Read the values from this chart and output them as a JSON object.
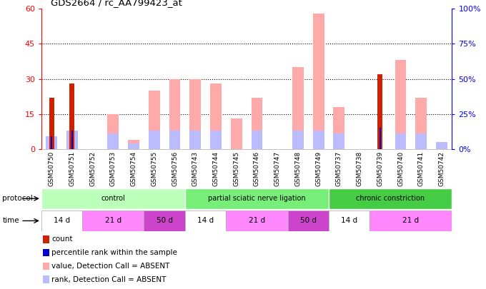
{
  "title": "GDS2664 / rc_AA799423_at",
  "samples": [
    "GSM50750",
    "GSM50751",
    "GSM50752",
    "GSM50753",
    "GSM50754",
    "GSM50755",
    "GSM50756",
    "GSM50743",
    "GSM50744",
    "GSM50745",
    "GSM50746",
    "GSM50747",
    "GSM50748",
    "GSM50749",
    "GSM50737",
    "GSM50738",
    "GSM50739",
    "GSM50740",
    "GSM50741",
    "GSM50742"
  ],
  "count_values": [
    22,
    28,
    0,
    0,
    0,
    0,
    0,
    0,
    0,
    0,
    0,
    0,
    0,
    0,
    0,
    0,
    32,
    0,
    0,
    0
  ],
  "percentile_values": [
    9,
    13,
    0,
    0,
    0,
    0,
    0,
    0,
    0,
    0,
    0,
    0,
    0,
    0,
    0,
    0,
    15,
    0,
    0,
    0
  ],
  "absent_value_values": [
    0,
    0,
    0,
    15,
    4,
    25,
    30,
    30,
    28,
    13,
    22,
    0,
    35,
    58,
    18,
    0,
    0,
    38,
    22,
    0
  ],
  "absent_rank_values": [
    9,
    13,
    0,
    11,
    4,
    13,
    13,
    13,
    13,
    0,
    13,
    0,
    13,
    13,
    11,
    0,
    0,
    11,
    11,
    5
  ],
  "ylim_left": [
    0,
    60
  ],
  "ylim_right": [
    0,
    100
  ],
  "yticks_left": [
    0,
    15,
    30,
    45,
    60
  ],
  "yticks_right": [
    0,
    25,
    50,
    75,
    100
  ],
  "ytick_labels_left": [
    "0",
    "15",
    "30",
    "45",
    "60"
  ],
  "ytick_labels_right": [
    "0%",
    "25%",
    "50%",
    "75%",
    "100%"
  ],
  "gridlines_at": [
    15,
    30,
    45
  ],
  "color_count": "#cc2200",
  "color_percentile": "#0000cc",
  "color_absent_value": "#ffaaaa",
  "color_absent_rank": "#bbbbff",
  "protocols": [
    {
      "label": "control",
      "start": 0,
      "end": 7,
      "color": "#bbffbb"
    },
    {
      "label": "partial sciatic nerve ligation",
      "start": 7,
      "end": 14,
      "color": "#77ee77"
    },
    {
      "label": "chronic constriction",
      "start": 14,
      "end": 20,
      "color": "#44cc44"
    }
  ],
  "times": [
    {
      "label": "14 d",
      "start": 0,
      "end": 2,
      "color": "#ffffff"
    },
    {
      "label": "21 d",
      "start": 2,
      "end": 5,
      "color": "#ff88ff"
    },
    {
      "label": "50 d",
      "start": 5,
      "end": 7,
      "color": "#cc44cc"
    },
    {
      "label": "14 d",
      "start": 7,
      "end": 9,
      "color": "#ffffff"
    },
    {
      "label": "21 d",
      "start": 9,
      "end": 12,
      "color": "#ff88ff"
    },
    {
      "label": "50 d",
      "start": 12,
      "end": 14,
      "color": "#cc44cc"
    },
    {
      "label": "14 d",
      "start": 14,
      "end": 16,
      "color": "#ffffff"
    },
    {
      "label": "21 d",
      "start": 16,
      "end": 20,
      "color": "#ff88ff"
    }
  ],
  "legend_items": [
    {
      "label": "count",
      "color": "#cc2200"
    },
    {
      "label": "percentile rank within the sample",
      "color": "#0000cc"
    },
    {
      "label": "value, Detection Call = ABSENT",
      "color": "#ffaaaa"
    },
    {
      "label": "rank, Detection Call = ABSENT",
      "color": "#bbbbff"
    }
  ],
  "bar_width": 0.55,
  "figsize": [
    6.8,
    4.05
  ],
  "dpi": 100
}
